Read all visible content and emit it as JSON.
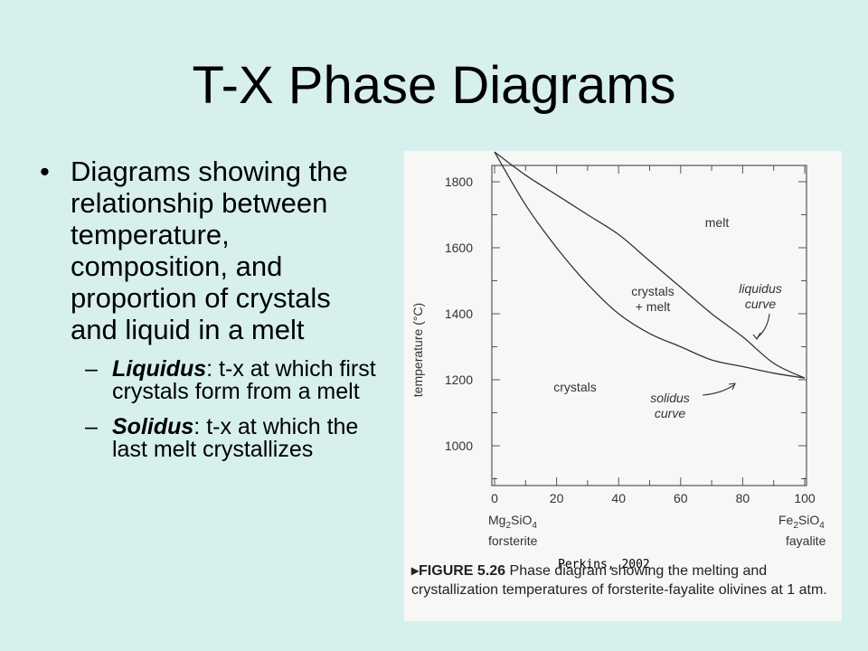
{
  "slide": {
    "title": "T-X Phase Diagrams",
    "bullet_main": "Diagrams showing the relationship between temperature, composition, and proportion of crystals and liquid in a melt",
    "sub_bullets": [
      {
        "term": "Liquidus",
        "text": ": t-x at which first crystals form from a melt"
      },
      {
        "term": "Solidus",
        "text": ": t-x at which the last melt crystallizes"
      }
    ]
  },
  "figure": {
    "caption_label": "▸FIGURE 5.26",
    "caption_text": "Phase diagram showing the melting and crystallization temperatures of forsterite-fayalite olivines at 1 atm.",
    "credit": "Perkins, 2002",
    "ylabel": "temperature (°C)",
    "y_ticks": [
      "1000",
      "1200",
      "1400",
      "1600",
      "1800"
    ],
    "x_ticks": [
      "0",
      "20",
      "40",
      "60",
      "80",
      "100"
    ],
    "left_end": {
      "formula_a": "Mg",
      "sub_a": "2",
      "formula_b": "SiO",
      "sub_b": "4",
      "name": "forsterite"
    },
    "right_end": {
      "formula_a": "Fe",
      "sub_a": "2",
      "formula_b": "SiO",
      "sub_b": "4",
      "name": "fayalite"
    },
    "region_labels": {
      "melt": "melt",
      "crystals_melt_1": "crystals",
      "crystals_melt_2": "+ melt",
      "crystals": "crystals",
      "liquidus_1": "liquidus",
      "liquidus_2": "curve",
      "solidus_1": "solidus",
      "solidus_2": "curve"
    }
  },
  "chart_data": {
    "type": "line",
    "xlabel": "",
    "ylabel": "temperature (°C)",
    "xlim": [
      0,
      100
    ],
    "ylim": [
      900,
      1840
    ],
    "series": [
      {
        "name": "liquidus curve",
        "x": [
          0,
          10,
          20,
          30,
          40,
          50,
          60,
          70,
          80,
          90,
          100
        ],
        "y": [
          1890,
          1820,
          1760,
          1700,
          1640,
          1560,
          1480,
          1400,
          1330,
          1250,
          1205
        ]
      },
      {
        "name": "solidus curve",
        "x": [
          0,
          10,
          20,
          30,
          40,
          50,
          60,
          70,
          80,
          90,
          100
        ],
        "y": [
          1890,
          1730,
          1600,
          1490,
          1400,
          1340,
          1300,
          1260,
          1240,
          1220,
          1205
        ]
      }
    ]
  }
}
